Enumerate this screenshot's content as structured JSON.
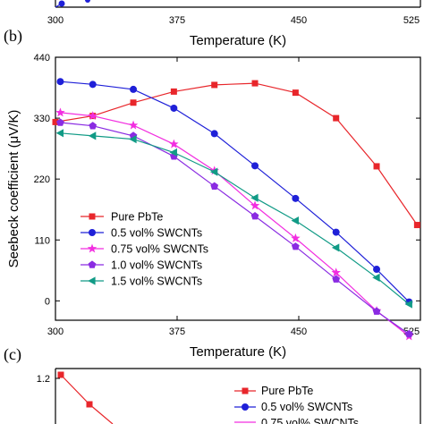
{
  "panels": {
    "top": {
      "xticks": [
        "300",
        "375",
        "450",
        "525"
      ],
      "xlabel": "Temperature (K)"
    },
    "bottom": {
      "label": "(c)",
      "yticks": [
        "1.2"
      ],
      "legend": [
        "Pure PbTe",
        "0.5 vol% SWCNTs",
        "0.75 vol% SWCNTs"
      ],
      "first_points": [
        [
          300,
          1.22
        ],
        [
          315,
          1.07
        ]
      ]
    }
  },
  "chart_data": {
    "type": "line",
    "label": "(b)",
    "xlabel": "Temperature (K)",
    "ylabel": "Seebeck coefficient (μV/K)",
    "xlim": [
      300,
      525
    ],
    "ylim": [
      -35,
      440
    ],
    "xticks": [
      300,
      375,
      450,
      525
    ],
    "yticks": [
      0,
      110,
      220,
      330,
      440
    ],
    "legend_position": "bottom-left",
    "series": [
      {
        "name": "Pure PbTe",
        "color": "#e8262b",
        "marker": "square",
        "x": [
          300,
          323,
          348,
          373,
          398,
          423,
          448,
          473,
          498,
          523
        ],
        "y": [
          323,
          334,
          358,
          378,
          390,
          393,
          376,
          330,
          243,
          137
        ]
      },
      {
        "name": "0.5 vol% SWCNTs",
        "color": "#1f20d8",
        "marker": "circle",
        "x": [
          303,
          323,
          348,
          373,
          398,
          423,
          448,
          473,
          498,
          518
        ],
        "y": [
          396,
          391,
          382,
          348,
          302,
          244,
          185,
          124,
          57,
          -2
        ]
      },
      {
        "name": "0.75 vol% SWCNTs",
        "color": "#f22ee0",
        "marker": "star",
        "x": [
          303,
          323,
          348,
          373,
          398,
          423,
          448,
          473,
          498,
          518
        ],
        "y": [
          340,
          334,
          317,
          283,
          235,
          172,
          113,
          51,
          -18,
          -64
        ]
      },
      {
        "name": "1.0 vol% SWCNTs",
        "color": "#8a2be2",
        "marker": "pentagon",
        "x": [
          303,
          323,
          348,
          373,
          398,
          423,
          448,
          473,
          498,
          518
        ],
        "y": [
          322,
          316,
          298,
          261,
          207,
          153,
          98,
          39,
          -19,
          -60
        ]
      },
      {
        "name": "1.5 vol% SWCNTs",
        "color": "#119b86",
        "marker": "triangle-left",
        "x": [
          303,
          323,
          348,
          373,
          398,
          423,
          448,
          473,
          498,
          518
        ],
        "y": [
          303,
          298,
          292,
          268,
          233,
          186,
          145,
          96,
          42,
          -6
        ]
      }
    ]
  }
}
